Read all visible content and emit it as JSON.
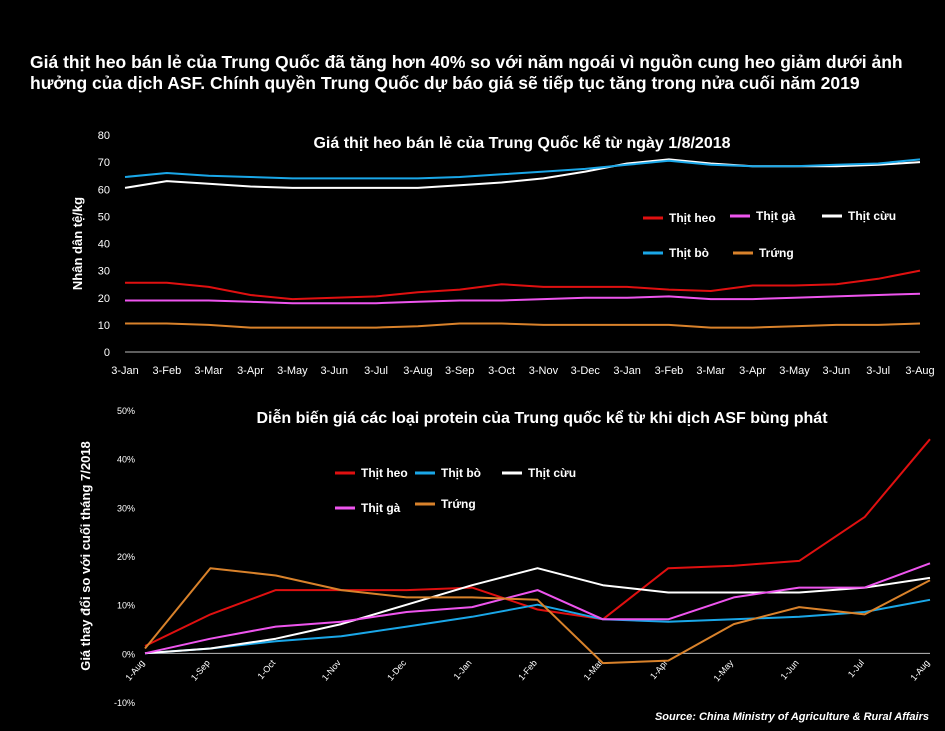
{
  "headline": "Giá thịt heo bán lẻ của Trung Quốc đã tăng hơn 40% so với năm ngoái vì nguồn cung heo giảm dưới ảnh hưởng của dịch ASF. Chính quyền Trung Quốc dự báo giá sẽ tiếp tục tăng trong nửa cuối năm 2019",
  "source": "Source:  China Ministry of Agriculture & Rural Affairs",
  "chart_data": [
    {
      "type": "line",
      "title": "Giá thịt heo bán lẻ của Trung Quốc kể từ ngày 1/8/2018",
      "ylabel": "Nhân dân tệ/kg",
      "xlabel": "",
      "ylim": [
        0,
        80
      ],
      "yticks": [
        "0",
        "10",
        "20",
        "30",
        "40",
        "50",
        "60",
        "70",
        "80"
      ],
      "categories": [
        "3-Jan",
        "3-Feb",
        "3-Mar",
        "3-Apr",
        "3-May",
        "3-Jun",
        "3-Jul",
        "3-Aug",
        "3-Sep",
        "3-Oct",
        "3-Nov",
        "3-Dec",
        "3-Jan",
        "3-Feb",
        "3-Mar",
        "3-Apr",
        "3-May",
        "3-Jun",
        "3-Jul",
        "3-Aug"
      ],
      "legend": "inside-right",
      "grid": false,
      "series": [
        {
          "name": "Thịt heo",
          "color": "#e01010",
          "values": [
            25.5,
            25.5,
            24,
            21,
            19.5,
            20,
            20.5,
            22,
            23,
            25,
            24,
            24,
            24,
            23,
            22.5,
            24.5,
            24.5,
            25,
            27,
            30
          ]
        },
        {
          "name": "Thịt gà",
          "color": "#ee55ee",
          "values": [
            19,
            19,
            19,
            18.5,
            18,
            18,
            18,
            18.5,
            19,
            19,
            19.5,
            20,
            20,
            20.5,
            19.5,
            19.5,
            20,
            20.5,
            21,
            21.5
          ]
        },
        {
          "name": "Thịt cừu",
          "color": "#ffffff",
          "values": [
            60.5,
            63,
            62,
            61,
            60.5,
            60.5,
            60.5,
            60.5,
            61.5,
            62.5,
            64,
            66.5,
            69.5,
            71,
            69.5,
            68.5,
            68.5,
            68.5,
            69,
            70
          ]
        },
        {
          "name": "Thịt bò",
          "color": "#1aa7e8",
          "values": [
            64.5,
            66,
            65,
            64.5,
            64,
            64,
            64,
            64,
            64.5,
            65.5,
            66.5,
            67.5,
            69,
            70.5,
            69,
            68.5,
            68.5,
            69,
            69.5,
            71
          ]
        },
        {
          "name": "Trứng",
          "color": "#d9822b",
          "values": [
            10.5,
            10.5,
            10,
            9,
            9,
            9,
            9,
            9.5,
            10.5,
            10.5,
            10,
            10,
            10,
            10,
            9,
            9,
            9.5,
            10,
            10,
            10.5
          ]
        }
      ]
    },
    {
      "type": "line",
      "title": "Diễn biến giá các loại protein của Trung quốc kể từ khi dịch ASF bùng phát",
      "ylabel": "Giá thay đổi so với cuối tháng 7/2018",
      "xlabel": "",
      "ylim": [
        -10,
        50
      ],
      "yticks": [
        "-10%",
        "0%",
        "10%",
        "20%",
        "30%",
        "40%",
        "50%"
      ],
      "categories": [
        "1-Aug",
        "1-Sep",
        "1-Oct",
        "1-Nov",
        "1-Dec",
        "1-Jan",
        "1-Feb",
        "1-Mar",
        "1-Apr",
        "1-May",
        "1-Jun",
        "1-Jul",
        "1-Aug"
      ],
      "legend": "inside-top-left",
      "grid": false,
      "series": [
        {
          "name": "Thịt heo",
          "color": "#e01010",
          "values": [
            1.5,
            8,
            13,
            13,
            13,
            13.5,
            9,
            7,
            17.5,
            18,
            19,
            28,
            44
          ]
        },
        {
          "name": "Thịt bò",
          "color": "#1aa7e8",
          "values": [
            0,
            1,
            2.5,
            3.5,
            5.5,
            7.5,
            10,
            7,
            6.5,
            7,
            7.5,
            8.5,
            11
          ]
        },
        {
          "name": "Thịt cừu",
          "color": "#ffffff",
          "values": [
            0,
            1,
            3,
            6,
            10,
            14,
            17.5,
            14,
            12.5,
            12.5,
            12.5,
            13.5,
            15.5
          ]
        },
        {
          "name": "Thịt gà",
          "color": "#ee55ee",
          "values": [
            0,
            3,
            5.5,
            6.5,
            8.5,
            9.5,
            13,
            7,
            7,
            11.5,
            13.5,
            13.5,
            18.5
          ]
        },
        {
          "name": "Trứng",
          "color": "#d9822b",
          "values": [
            1,
            17.5,
            16,
            13,
            11.5,
            11.5,
            11,
            -2,
            -1.5,
            6,
            9.5,
            8,
            15
          ]
        }
      ]
    }
  ]
}
